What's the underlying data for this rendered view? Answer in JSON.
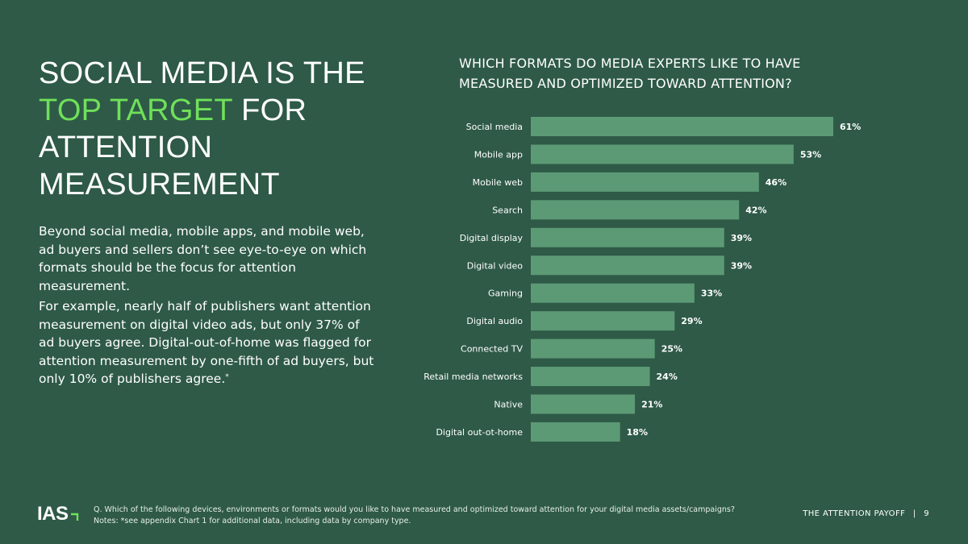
{
  "headline": {
    "line1": "SOCIAL MEDIA IS THE",
    "accent": "TOP TARGET",
    "rest": " FOR ATTENTION MEASUREMENT"
  },
  "body": {
    "p1": "Beyond social media, mobile apps, and mobile web, ad buyers and sellers don’t see eye-to-eye on which formats should be the focus for attention measurement.",
    "p2": "For example, nearly half of publishers want attention measurement on digital video ads, but only 37% of ad buyers agree. Digital-out-of-home was flagged for attention measurement by one-fifth of ad buyers, but only 10% of publishers agree.",
    "p2_mark": "*"
  },
  "colors": {
    "background": "#2e5a47",
    "bar": "#5c9a76",
    "accent": "#6fe05a",
    "text": "#ffffff"
  },
  "chart_data": {
    "type": "bar",
    "orientation": "horizontal",
    "title": "WHICH FORMATS DO MEDIA EXPERTS LIKE TO HAVE MEASURED AND OPTIMIZED TOWARD ATTENTION?",
    "categories": [
      "Social media",
      "Mobile app",
      "Mobile web",
      "Search",
      "Digital display",
      "Digital video",
      "Gaming",
      "Digital audio",
      "Connected TV",
      "Retail media networks",
      "Native",
      "Digital out-ot-home"
    ],
    "values": [
      61,
      53,
      46,
      42,
      39,
      39,
      33,
      29,
      25,
      24,
      21,
      18
    ],
    "value_labels": [
      "61%",
      "53%",
      "46%",
      "42%",
      "39%",
      "39%",
      "33%",
      "29%",
      "25%",
      "24%",
      "21%",
      "18%"
    ],
    "unit": "%",
    "xlim": [
      0,
      61
    ],
    "grid": false
  },
  "footer": {
    "logo": "IAS",
    "question": "Q. Which of the following devices, environments or formats would you like to have measured and optimized toward attention for your digital media assets/campaigns?",
    "notes": "Notes: *see appendix Chart 1 for additional data, including data by company type.",
    "report": "THE ATTENTION PAYOFF",
    "separator": "|",
    "page": "9"
  }
}
